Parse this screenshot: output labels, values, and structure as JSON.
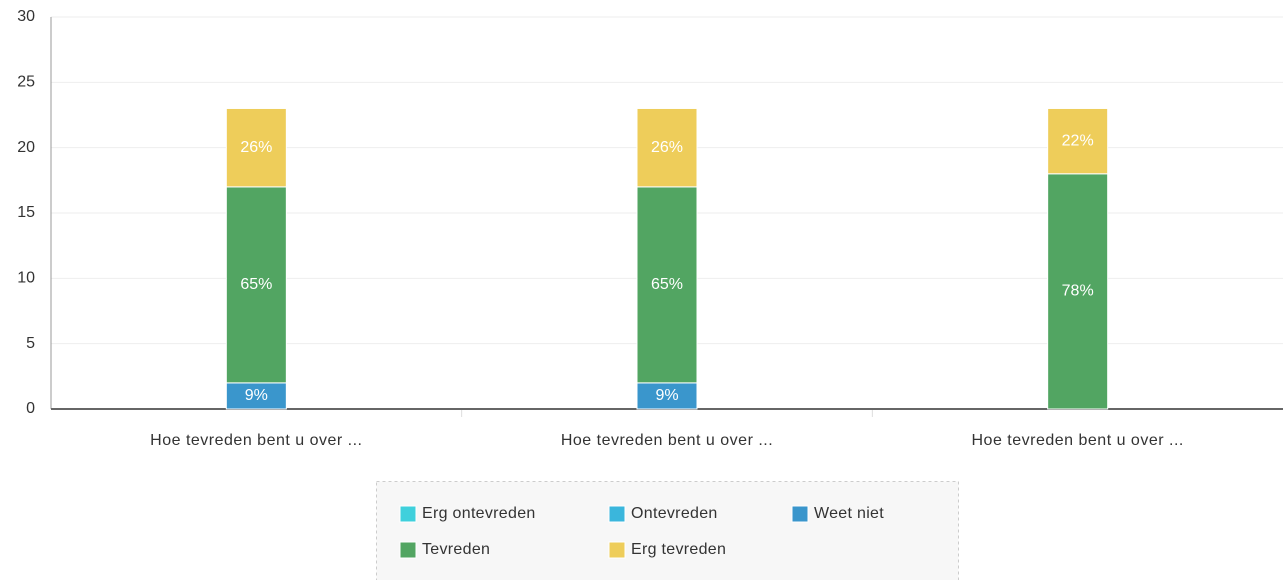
{
  "chart_data": {
    "type": "stacked_bar",
    "categories": [
      "Hoe tevreden bent u over ...",
      "Hoe tevreden bent u over ...",
      "Hoe tevreden bent u over ..."
    ],
    "series": [
      {
        "name": "Erg ontevreden",
        "color": "#3fd0dc",
        "values": [
          0,
          0,
          0
        ]
      },
      {
        "name": "Ontevreden",
        "color": "#3ab6dc",
        "values": [
          0,
          0,
          0
        ]
      },
      {
        "name": "Weet niet",
        "color": "#3a96cc",
        "values": [
          2,
          2,
          0
        ],
        "value_labels": [
          "9%",
          "9%",
          null
        ]
      },
      {
        "name": "Tevreden",
        "color": "#52a562",
        "values": [
          15,
          15,
          18
        ],
        "value_labels": [
          "65%",
          "65%",
          "78%"
        ]
      },
      {
        "name": "Erg tevreden",
        "color": "#eecd5a",
        "values": [
          6,
          6,
          5
        ],
        "value_labels": [
          "26%",
          "26%",
          "22%"
        ]
      }
    ],
    "ylim": [
      0,
      30
    ],
    "yticks": [
      0,
      5,
      10,
      15,
      20,
      25,
      30
    ],
    "grid": true
  }
}
